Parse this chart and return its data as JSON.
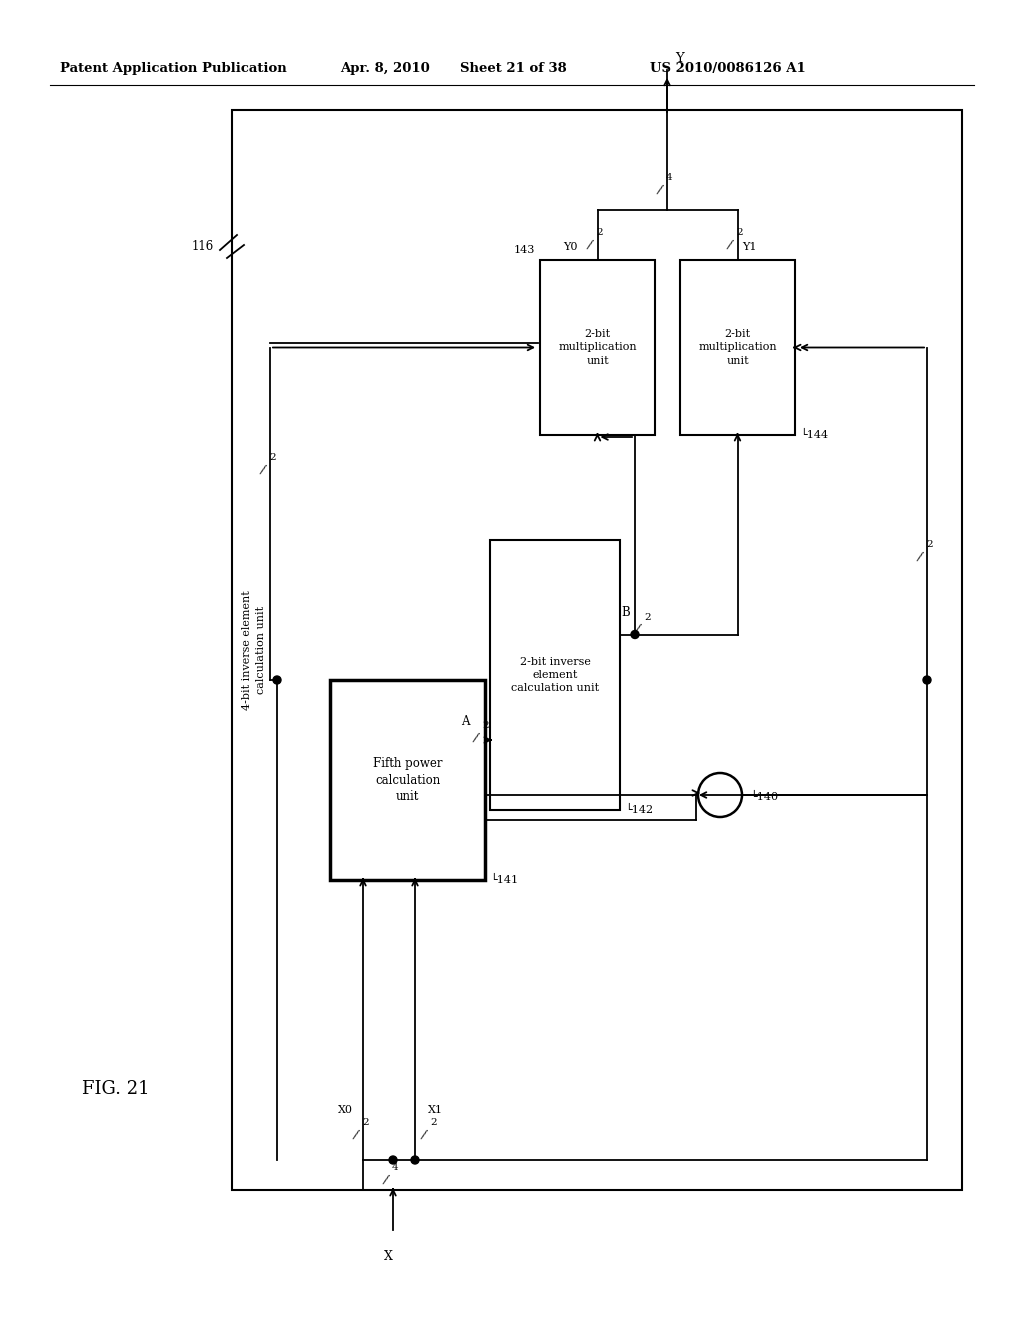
{
  "bg_color": "#ffffff",
  "header_text": "Patent Application Publication",
  "header_date": "Apr. 8, 2010",
  "header_sheet": "Sheet 21 of 38",
  "header_patent": "US 2010/0086126 A1",
  "fig_label": "FIG. 21",
  "outer_label": "4-bit inverse element\ncalculation unit",
  "ref_116": "116",
  "ref_140": "140",
  "ref_141": "141",
  "ref_142": "142",
  "ref_143": "143",
  "ref_144": "144",
  "fp_label": "Fifth power\ncalculation\nunit",
  "ie_label": "2-bit inverse\nelement\ncalculation unit",
  "ml_label": "2-bit\nmultiplication\nunit",
  "mr_label": "2-bit\nmultiplication\nunit"
}
